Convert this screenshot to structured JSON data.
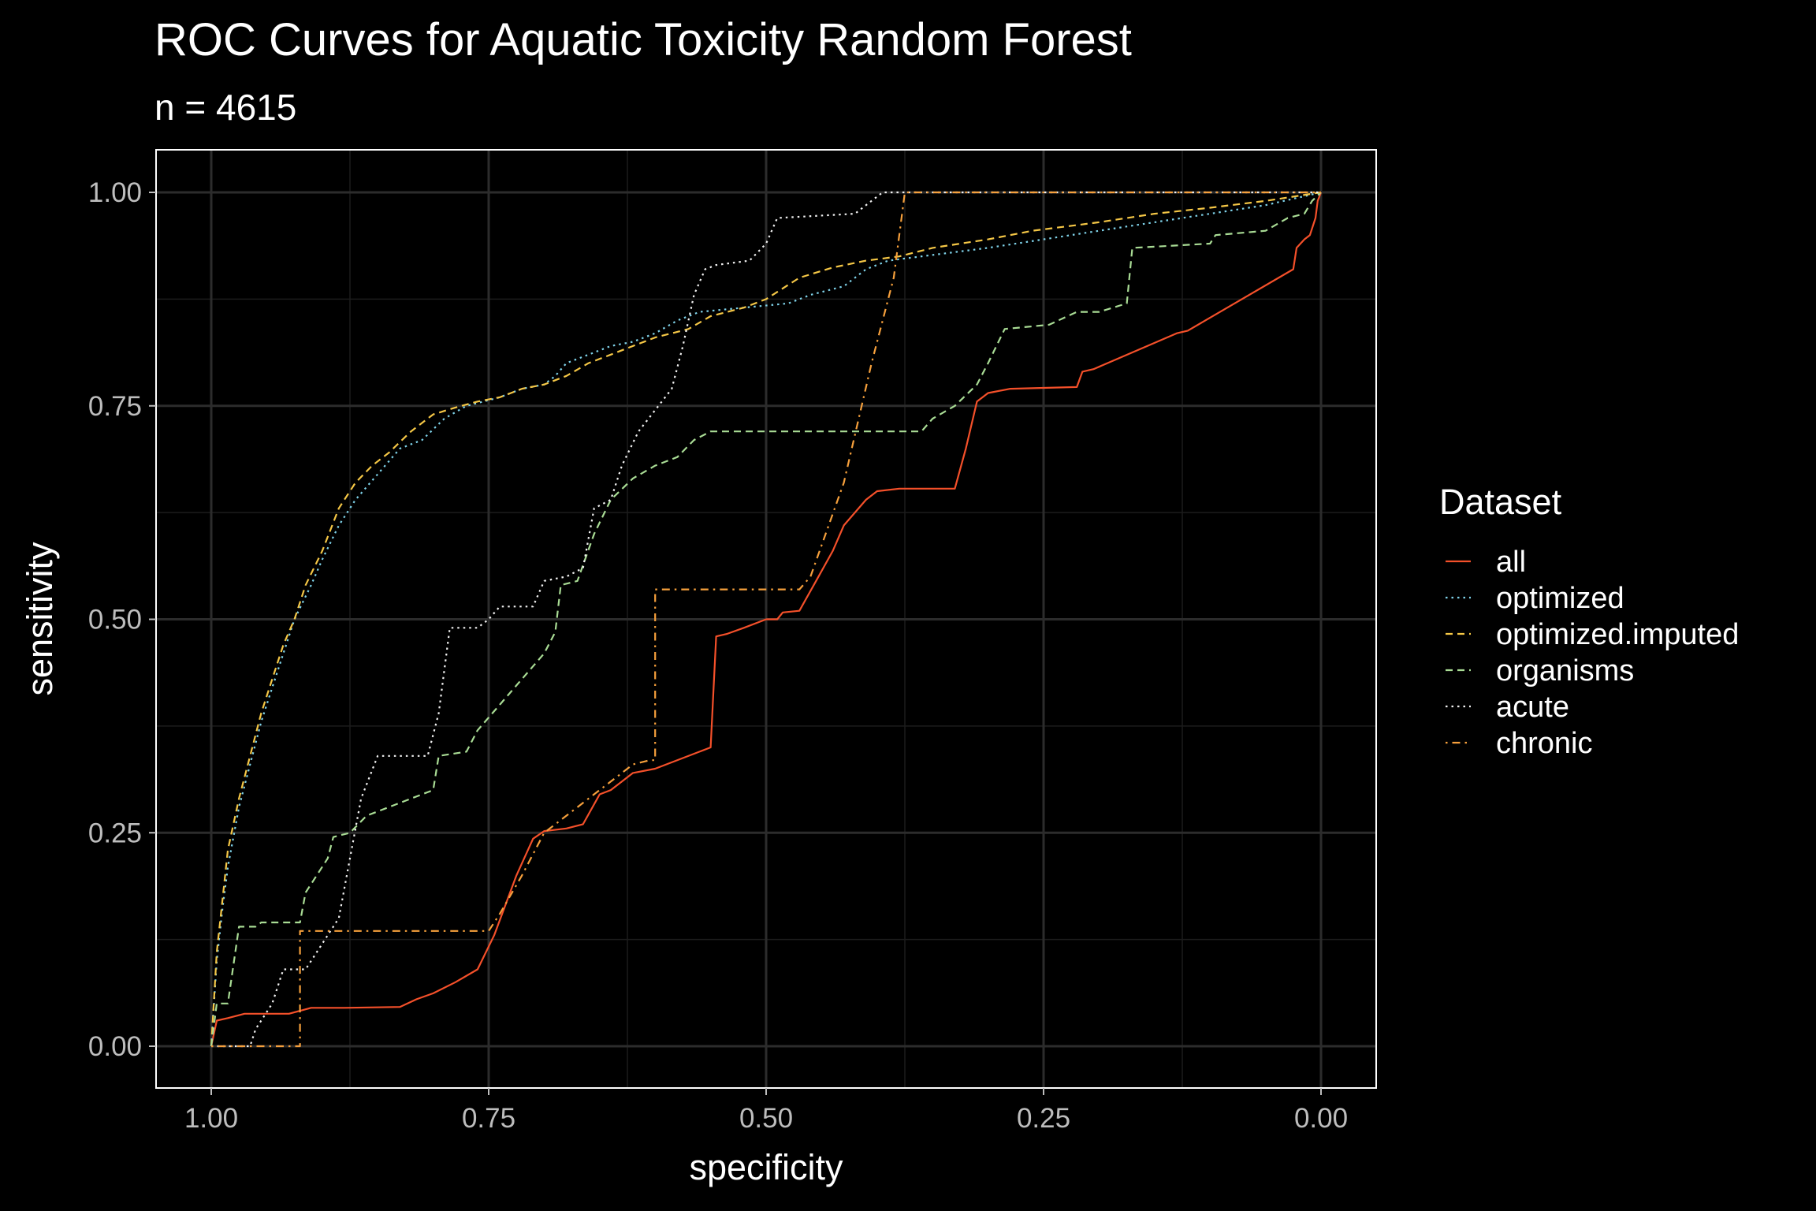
{
  "chart_data": {
    "type": "line",
    "title": "ROC Curves for Aquatic Toxicity Random Forest",
    "subtitle": "n = 4615",
    "xlabel": "specificity",
    "ylabel": "sensitivity",
    "x_reversed": true,
    "xlim": [
      1.0,
      0.0
    ],
    "ylim": [
      0.0,
      1.0
    ],
    "x_ticks": [
      1.0,
      0.75,
      0.5,
      0.25,
      0.0
    ],
    "x_tick_labels": [
      "1.00",
      "0.75",
      "0.50",
      "0.25",
      "0.00"
    ],
    "y_ticks": [
      0.0,
      0.25,
      0.5,
      0.75,
      1.0
    ],
    "y_tick_labels": [
      "0.00",
      "0.25",
      "0.50",
      "0.75",
      "1.00"
    ],
    "grid": true,
    "theme": "dark",
    "legend": {
      "title": "Dataset",
      "position": "right"
    },
    "series": [
      {
        "name": "all",
        "color": "#f4502a",
        "dash": "solid",
        "points": [
          [
            1.0,
            0.0
          ],
          [
            0.995,
            0.03
          ],
          [
            0.985,
            0.033
          ],
          [
            0.97,
            0.038
          ],
          [
            0.93,
            0.038
          ],
          [
            0.91,
            0.045
          ],
          [
            0.88,
            0.045
          ],
          [
            0.83,
            0.046
          ],
          [
            0.815,
            0.055
          ],
          [
            0.8,
            0.062
          ],
          [
            0.78,
            0.075
          ],
          [
            0.76,
            0.09
          ],
          [
            0.745,
            0.13
          ],
          [
            0.725,
            0.2
          ],
          [
            0.71,
            0.243
          ],
          [
            0.7,
            0.252
          ],
          [
            0.68,
            0.255
          ],
          [
            0.665,
            0.26
          ],
          [
            0.65,
            0.295
          ],
          [
            0.64,
            0.3
          ],
          [
            0.63,
            0.31
          ],
          [
            0.62,
            0.32
          ],
          [
            0.6,
            0.325
          ],
          [
            0.56,
            0.345
          ],
          [
            0.55,
            0.35
          ],
          [
            0.545,
            0.48
          ],
          [
            0.535,
            0.483
          ],
          [
            0.52,
            0.49
          ],
          [
            0.5,
            0.5
          ],
          [
            0.49,
            0.5
          ],
          [
            0.485,
            0.508
          ],
          [
            0.47,
            0.51
          ],
          [
            0.455,
            0.545
          ],
          [
            0.44,
            0.58
          ],
          [
            0.43,
            0.61
          ],
          [
            0.41,
            0.64
          ],
          [
            0.4,
            0.65
          ],
          [
            0.38,
            0.653
          ],
          [
            0.33,
            0.653
          ],
          [
            0.32,
            0.7
          ],
          [
            0.31,
            0.755
          ],
          [
            0.3,
            0.765
          ],
          [
            0.28,
            0.77
          ],
          [
            0.22,
            0.772
          ],
          [
            0.215,
            0.79
          ],
          [
            0.205,
            0.793
          ],
          [
            0.13,
            0.835
          ],
          [
            0.12,
            0.838
          ],
          [
            0.025,
            0.91
          ],
          [
            0.022,
            0.935
          ],
          [
            0.015,
            0.945
          ],
          [
            0.01,
            0.95
          ],
          [
            0.005,
            0.97
          ],
          [
            0.003,
            0.99
          ],
          [
            0.0,
            1.0
          ]
        ]
      },
      {
        "name": "optimized",
        "color": "#7fd3ea",
        "dash": "dotted",
        "points": [
          [
            1.0,
            0.0
          ],
          [
            0.995,
            0.1
          ],
          [
            0.99,
            0.16
          ],
          [
            0.985,
            0.21
          ],
          [
            0.975,
            0.28
          ],
          [
            0.965,
            0.33
          ],
          [
            0.955,
            0.38
          ],
          [
            0.945,
            0.42
          ],
          [
            0.935,
            0.46
          ],
          [
            0.925,
            0.5
          ],
          [
            0.91,
            0.54
          ],
          [
            0.9,
            0.57
          ],
          [
            0.885,
            0.61
          ],
          [
            0.87,
            0.64
          ],
          [
            0.85,
            0.67
          ],
          [
            0.83,
            0.7
          ],
          [
            0.81,
            0.71
          ],
          [
            0.79,
            0.735
          ],
          [
            0.77,
            0.75
          ],
          [
            0.74,
            0.76
          ],
          [
            0.72,
            0.77
          ],
          [
            0.7,
            0.775
          ],
          [
            0.69,
            0.785
          ],
          [
            0.68,
            0.8
          ],
          [
            0.66,
            0.81
          ],
          [
            0.64,
            0.82
          ],
          [
            0.62,
            0.825
          ],
          [
            0.6,
            0.835
          ],
          [
            0.58,
            0.85
          ],
          [
            0.56,
            0.86
          ],
          [
            0.52,
            0.865
          ],
          [
            0.48,
            0.87
          ],
          [
            0.46,
            0.88
          ],
          [
            0.43,
            0.89
          ],
          [
            0.41,
            0.91
          ],
          [
            0.39,
            0.92
          ],
          [
            0.36,
            0.925
          ],
          [
            0.3,
            0.935
          ],
          [
            0.25,
            0.945
          ],
          [
            0.2,
            0.955
          ],
          [
            0.15,
            0.965
          ],
          [
            0.1,
            0.975
          ],
          [
            0.05,
            0.985
          ],
          [
            0.0,
            1.0
          ]
        ]
      },
      {
        "name": "optimized.imputed",
        "color": "#f5c746",
        "dash": "dashed",
        "points": [
          [
            1.0,
            0.0
          ],
          [
            0.995,
            0.11
          ],
          [
            0.99,
            0.17
          ],
          [
            0.985,
            0.23
          ],
          [
            0.975,
            0.29
          ],
          [
            0.965,
            0.34
          ],
          [
            0.955,
            0.39
          ],
          [
            0.945,
            0.43
          ],
          [
            0.935,
            0.47
          ],
          [
            0.925,
            0.5
          ],
          [
            0.915,
            0.54
          ],
          [
            0.9,
            0.58
          ],
          [
            0.885,
            0.63
          ],
          [
            0.87,
            0.66
          ],
          [
            0.855,
            0.68
          ],
          [
            0.84,
            0.695
          ],
          [
            0.82,
            0.72
          ],
          [
            0.8,
            0.74
          ],
          [
            0.78,
            0.748
          ],
          [
            0.76,
            0.755
          ],
          [
            0.74,
            0.76
          ],
          [
            0.72,
            0.77
          ],
          [
            0.7,
            0.775
          ],
          [
            0.68,
            0.785
          ],
          [
            0.66,
            0.8
          ],
          [
            0.64,
            0.81
          ],
          [
            0.62,
            0.82
          ],
          [
            0.6,
            0.83
          ],
          [
            0.57,
            0.84
          ],
          [
            0.55,
            0.855
          ],
          [
            0.52,
            0.865
          ],
          [
            0.5,
            0.875
          ],
          [
            0.47,
            0.9
          ],
          [
            0.44,
            0.912
          ],
          [
            0.41,
            0.92
          ],
          [
            0.38,
            0.925
          ],
          [
            0.35,
            0.935
          ],
          [
            0.3,
            0.945
          ],
          [
            0.26,
            0.955
          ],
          [
            0.2,
            0.965
          ],
          [
            0.15,
            0.975
          ],
          [
            0.1,
            0.982
          ],
          [
            0.05,
            0.99
          ],
          [
            0.0,
            1.0
          ]
        ]
      },
      {
        "name": "organisms",
        "color": "#a9dc95",
        "dash": "dashed",
        "points": [
          [
            1.0,
            0.0
          ],
          [
            0.995,
            0.05
          ],
          [
            0.985,
            0.05
          ],
          [
            0.975,
            0.14
          ],
          [
            0.96,
            0.14
          ],
          [
            0.955,
            0.145
          ],
          [
            0.92,
            0.145
          ],
          [
            0.915,
            0.18
          ],
          [
            0.905,
            0.2
          ],
          [
            0.895,
            0.22
          ],
          [
            0.89,
            0.245
          ],
          [
            0.875,
            0.25
          ],
          [
            0.86,
            0.27
          ],
          [
            0.84,
            0.28
          ],
          [
            0.82,
            0.29
          ],
          [
            0.8,
            0.3
          ],
          [
            0.795,
            0.34
          ],
          [
            0.77,
            0.345
          ],
          [
            0.76,
            0.37
          ],
          [
            0.74,
            0.4
          ],
          [
            0.72,
            0.43
          ],
          [
            0.7,
            0.46
          ],
          [
            0.69,
            0.485
          ],
          [
            0.685,
            0.54
          ],
          [
            0.67,
            0.545
          ],
          [
            0.655,
            0.6
          ],
          [
            0.64,
            0.64
          ],
          [
            0.62,
            0.665
          ],
          [
            0.6,
            0.68
          ],
          [
            0.58,
            0.69
          ],
          [
            0.565,
            0.71
          ],
          [
            0.55,
            0.72
          ],
          [
            0.36,
            0.72
          ],
          [
            0.35,
            0.735
          ],
          [
            0.33,
            0.75
          ],
          [
            0.31,
            0.775
          ],
          [
            0.3,
            0.8
          ],
          [
            0.285,
            0.84
          ],
          [
            0.245,
            0.845
          ],
          [
            0.22,
            0.86
          ],
          [
            0.2,
            0.86
          ],
          [
            0.175,
            0.87
          ],
          [
            0.17,
            0.935
          ],
          [
            0.1,
            0.94
          ],
          [
            0.095,
            0.95
          ],
          [
            0.05,
            0.955
          ],
          [
            0.03,
            0.97
          ],
          [
            0.015,
            0.975
          ],
          [
            0.008,
            0.99
          ],
          [
            0.0,
            1.0
          ]
        ]
      },
      {
        "name": "acute",
        "color": "#f2f2f2",
        "dash": "dotted",
        "points": [
          [
            1.0,
            0.0
          ],
          [
            0.965,
            0.0
          ],
          [
            0.96,
            0.02
          ],
          [
            0.955,
            0.03
          ],
          [
            0.945,
            0.05
          ],
          [
            0.935,
            0.09
          ],
          [
            0.915,
            0.09
          ],
          [
            0.905,
            0.11
          ],
          [
            0.895,
            0.13
          ],
          [
            0.885,
            0.15
          ],
          [
            0.875,
            0.22
          ],
          [
            0.865,
            0.29
          ],
          [
            0.85,
            0.34
          ],
          [
            0.805,
            0.34
          ],
          [
            0.795,
            0.39
          ],
          [
            0.785,
            0.49
          ],
          [
            0.76,
            0.49
          ],
          [
            0.75,
            0.5
          ],
          [
            0.74,
            0.515
          ],
          [
            0.71,
            0.515
          ],
          [
            0.7,
            0.545
          ],
          [
            0.68,
            0.55
          ],
          [
            0.665,
            0.56
          ],
          [
            0.655,
            0.63
          ],
          [
            0.64,
            0.64
          ],
          [
            0.63,
            0.68
          ],
          [
            0.615,
            0.72
          ],
          [
            0.6,
            0.745
          ],
          [
            0.585,
            0.77
          ],
          [
            0.575,
            0.82
          ],
          [
            0.565,
            0.88
          ],
          [
            0.555,
            0.91
          ],
          [
            0.545,
            0.915
          ],
          [
            0.515,
            0.92
          ],
          [
            0.5,
            0.94
          ],
          [
            0.49,
            0.97
          ],
          [
            0.42,
            0.975
          ],
          [
            0.405,
            0.99
          ],
          [
            0.395,
            1.0
          ],
          [
            0.0,
            1.0
          ]
        ]
      },
      {
        "name": "chronic",
        "color": "#f6a03c",
        "dash": "dotdash",
        "points": [
          [
            1.0,
            0.0
          ],
          [
            0.92,
            0.0
          ],
          [
            0.92,
            0.135
          ],
          [
            0.75,
            0.135
          ],
          [
            0.74,
            0.155
          ],
          [
            0.72,
            0.2
          ],
          [
            0.7,
            0.25
          ],
          [
            0.68,
            0.27
          ],
          [
            0.66,
            0.29
          ],
          [
            0.64,
            0.31
          ],
          [
            0.62,
            0.33
          ],
          [
            0.605,
            0.335
          ],
          [
            0.6,
            0.335
          ],
          [
            0.6,
            0.535
          ],
          [
            0.47,
            0.535
          ],
          [
            0.46,
            0.55
          ],
          [
            0.43,
            0.66
          ],
          [
            0.405,
            0.8
          ],
          [
            0.385,
            0.9
          ],
          [
            0.375,
            1.0
          ],
          [
            0.0,
            1.0
          ]
        ]
      }
    ]
  }
}
